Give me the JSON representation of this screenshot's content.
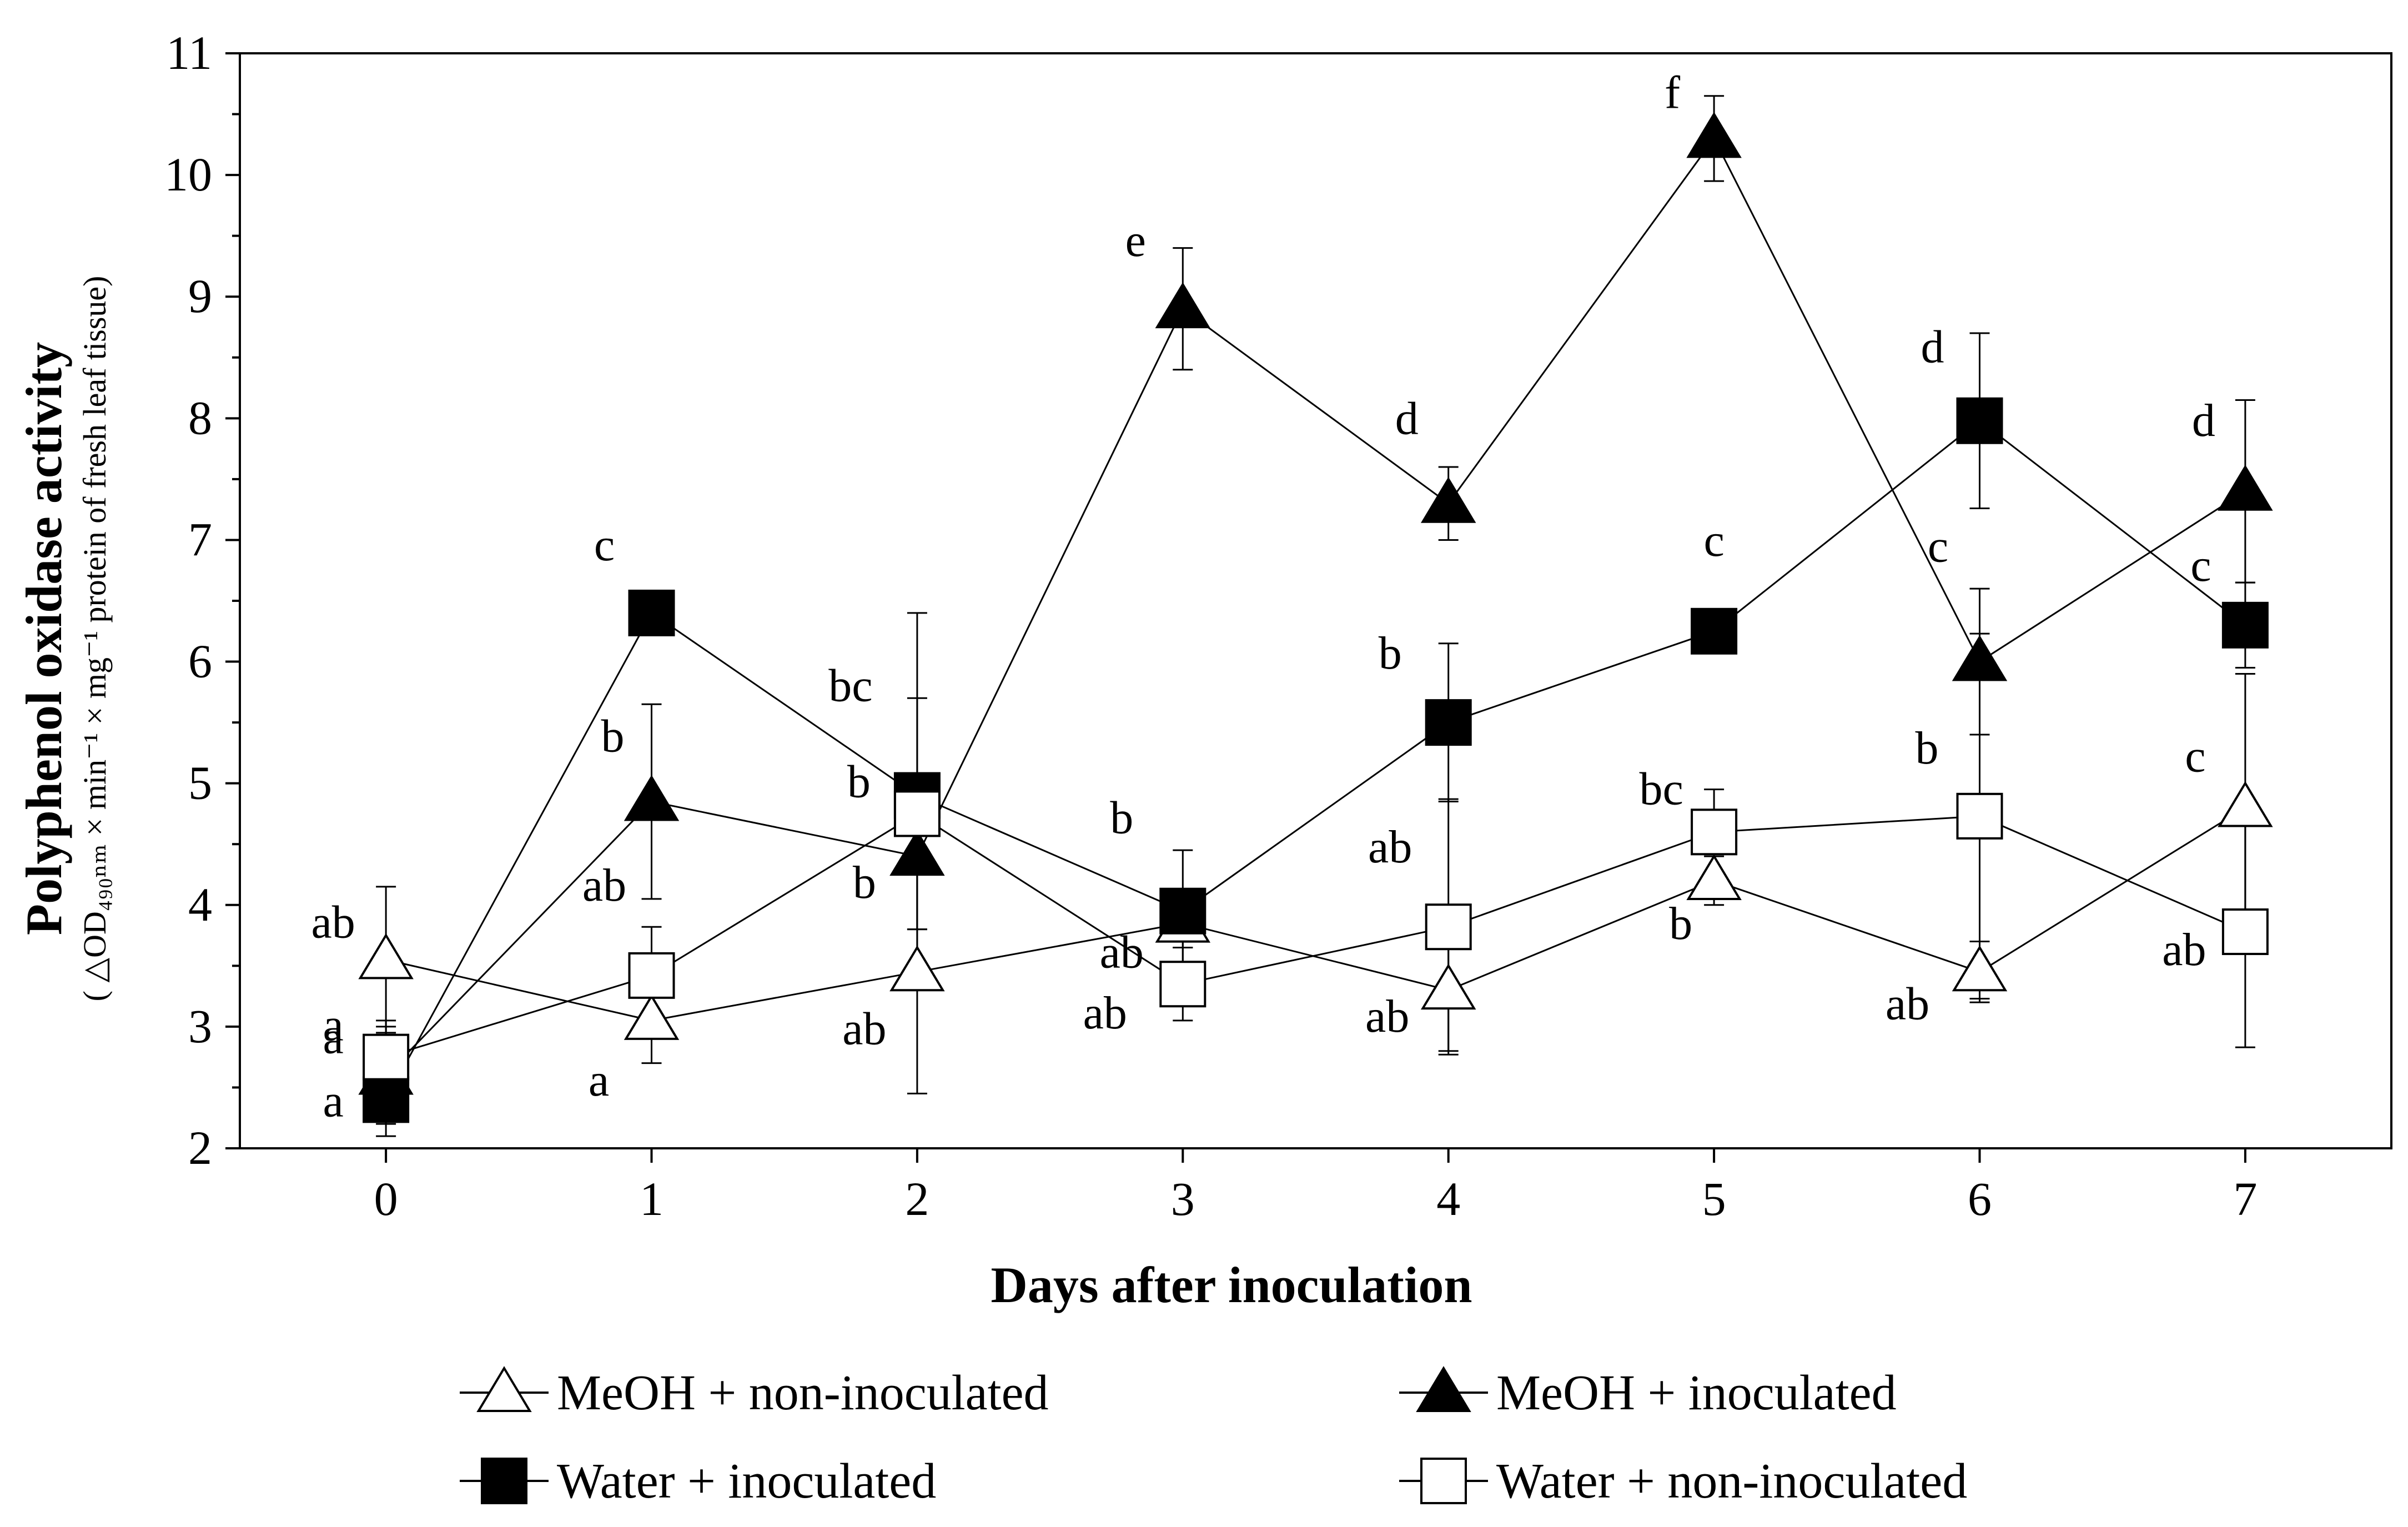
{
  "chart_data": {
    "type": "line",
    "xlabel": "Days after inoculation",
    "ylabel": "Polyphenol oxidase activity",
    "ylabel_units": "( △OD₄₉₀ₙₘ × min⁻¹ × mg⁻¹ protein of fresh leaf tissue)",
    "x": [
      0,
      1,
      2,
      3,
      4,
      5,
      6,
      7
    ],
    "xlim": [
      -0.55,
      7.55
    ],
    "ylim": [
      2,
      11
    ],
    "x_ticks": [
      "0",
      "1",
      "2",
      "3",
      "4",
      "5",
      "6",
      "7"
    ],
    "y_ticks": [
      "2",
      "3",
      "4",
      "5",
      "6",
      "7",
      "8",
      "9",
      "10",
      "11"
    ],
    "grid": false,
    "legend_position": "bottom",
    "series": [
      {
        "name": "MeOH + non-inoculated",
        "marker": "triangle-open",
        "values": [
          3.55,
          3.05,
          3.45,
          3.85,
          3.3,
          4.2,
          3.45,
          4.8
        ],
        "errors": [
          0.6,
          0.35,
          1.0,
          0.2,
          0.5,
          0.2,
          0.25,
          1.1
        ],
        "labels": [
          "ab",
          "a",
          "ab",
          "ab",
          "ab",
          "b",
          "ab",
          "c"
        ]
      },
      {
        "name": "MeOH + inoculated",
        "marker": "triangle-filled",
        "values": [
          2.6,
          4.85,
          4.4,
          8.9,
          7.3,
          10.3,
          6.0,
          7.4
        ],
        "errors": [
          0.4,
          0.8,
          0.6,
          0.5,
          0.3,
          0.35,
          0.6,
          0.75
        ],
        "labels": [
          "a",
          "b",
          "b",
          "e",
          "d",
          "f",
          "c",
          "d"
        ]
      },
      {
        "name": "Water + inoculated",
        "marker": "square-filled",
        "values": [
          2.4,
          6.4,
          4.9,
          3.95,
          5.5,
          6.25,
          7.98,
          6.3
        ],
        "errors": [
          0.3,
          0.1,
          1.5,
          0.5,
          0.65,
          0.05,
          0.72,
          0.35
        ],
        "labels": [
          "a",
          "c",
          "bc",
          "b",
          "b",
          "c",
          "d",
          "c"
        ]
      },
      {
        "name": "Water + non-inoculated",
        "marker": "square-open",
        "values": [
          2.75,
          3.42,
          4.75,
          3.35,
          3.82,
          4.6,
          4.73,
          3.78
        ],
        "errors": [
          0.3,
          0.4,
          0.95,
          0.3,
          1.05,
          0.35,
          1.5,
          0.95
        ],
        "labels": [
          "a",
          "ab",
          "b",
          "ab",
          "ab",
          "bc",
          "b",
          "ab"
        ]
      }
    ]
  }
}
